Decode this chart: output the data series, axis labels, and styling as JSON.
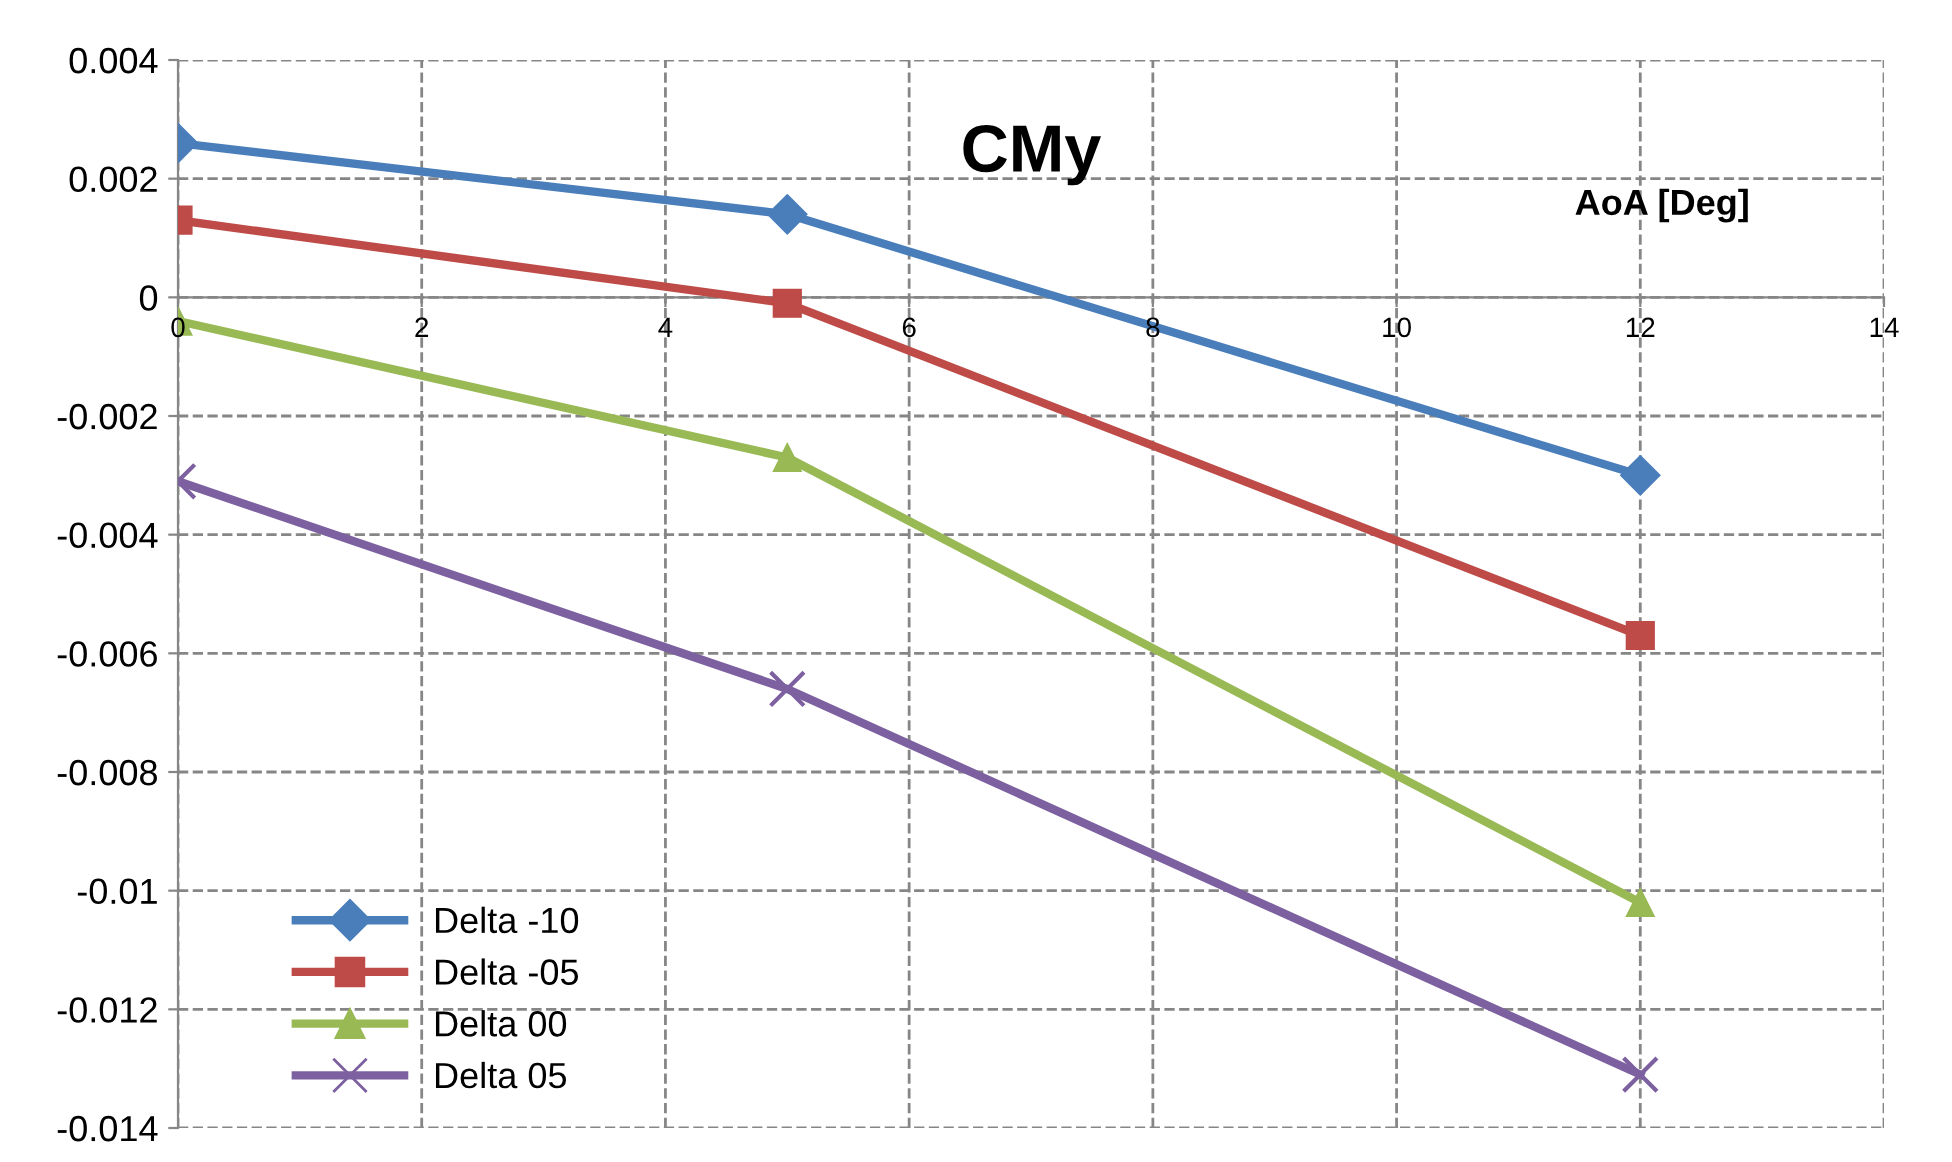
{
  "chart_data": {
    "type": "line",
    "title": "CMy",
    "xlabel": "AoA [Deg]",
    "x": [
      0,
      5,
      12
    ],
    "series": [
      {
        "name": "Delta -10",
        "color": "#4a7ebb",
        "marker": "diamond",
        "values": [
          0.0026,
          0.0014,
          -0.003
        ]
      },
      {
        "name": "Delta -05",
        "color": "#be4b48",
        "marker": "square",
        "values": [
          0.0013,
          -0.0001,
          -0.0057
        ]
      },
      {
        "name": "Delta 00",
        "color": "#98b954",
        "marker": "triangle",
        "values": [
          -0.0004,
          -0.0027,
          -0.0102
        ]
      },
      {
        "name": "Delta 05",
        "color": "#7d60a0",
        "marker": "cross",
        "values": [
          -0.0031,
          -0.0066,
          -0.0131
        ]
      }
    ],
    "xlim": [
      0,
      14
    ],
    "xticks": [
      0,
      2,
      4,
      6,
      8,
      10,
      12,
      14
    ],
    "ylim": [
      -0.014,
      0.004
    ],
    "yticks": [
      -0.014,
      -0.012,
      -0.01,
      -0.008,
      -0.006,
      -0.004,
      -0.002,
      0,
      0.002,
      0.004
    ],
    "grid": true,
    "line_style": "solid",
    "legend": "bottom left"
  }
}
